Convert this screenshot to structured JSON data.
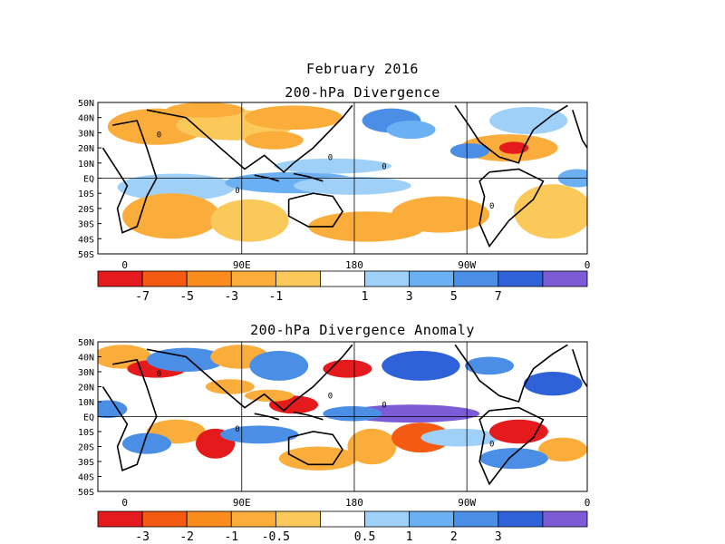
{
  "figure": {
    "title": "February 2016",
    "panel1_title": "200-hPa Divergence",
    "panel2_title": "200-hPa Divergence Anomaly"
  },
  "axes": {
    "lat_labels": [
      "50N",
      "40N",
      "30N",
      "20N",
      "10N",
      "EQ",
      "10S",
      "20S",
      "30S",
      "40S",
      "50S"
    ],
    "lon_labels": [
      "0",
      "90E",
      "180",
      "90W",
      "0"
    ]
  },
  "colorbar1": {
    "colors": [
      "#e41a1c",
      "#f45a12",
      "#fa8c1e",
      "#fbad3c",
      "#fbc85a",
      "#ffffff",
      "#9fd1f8",
      "#6ab0f2",
      "#4a8ee6",
      "#2f62d8",
      "#7c5cd6"
    ],
    "labels": [
      "-7",
      "-5",
      "-3",
      "-1",
      "1",
      "3",
      "5",
      "7"
    ]
  },
  "colorbar2": {
    "colors": [
      "#e41a1c",
      "#f45a12",
      "#fa8c1e",
      "#fbad3c",
      "#fbc85a",
      "#ffffff",
      "#9fd1f8",
      "#6ab0f2",
      "#4a8ee6",
      "#2f62d8",
      "#7c5cd6"
    ],
    "labels": [
      "-3",
      "-2",
      "-1",
      "-0.5",
      "0.5",
      "1",
      "2",
      "3"
    ]
  },
  "contour_label": "0"
}
